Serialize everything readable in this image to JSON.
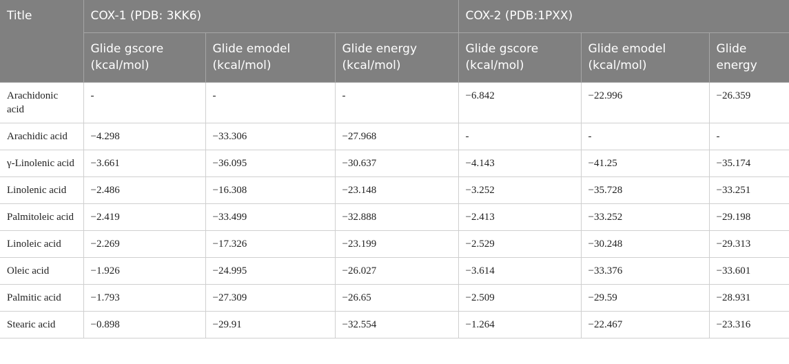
{
  "table": {
    "header": {
      "title": "Title",
      "groups": [
        "COX-1 (PDB: 3KK6)",
        "COX-2 (PDB:1PXX)"
      ],
      "columns": [
        "Glide gscore (kcal/mol)",
        "Glide emodel (kcal/mol)",
        "Glide energy (kcal/mol)",
        "Glide gscore (kcal/mol)",
        "Glide emodel (kcal/mol)",
        "Glide energy"
      ]
    },
    "rows": [
      [
        "Arachidonic acid",
        "-",
        "-",
        "-",
        "−6.842",
        "−22.996",
        "−26.359"
      ],
      [
        "Arachidic acid",
        "−4.298",
        "−33.306",
        "−27.968",
        "-",
        "-",
        "-"
      ],
      [
        "γ-Linolenic acid",
        "−3.661",
        "−36.095",
        "−30.637",
        "−4.143",
        "−41.25",
        "−35.174"
      ],
      [
        "Linolenic acid",
        "−2.486",
        "−16.308",
        "−23.148",
        "−3.252",
        "−35.728",
        "−33.251"
      ],
      [
        "Palmitoleic acid",
        "−2.419",
        "−33.499",
        "−32.888",
        "−2.413",
        "−33.252",
        "−29.198"
      ],
      [
        "Linoleic acid",
        "−2.269",
        "−17.326",
        "−23.199",
        "−2.529",
        "−30.248",
        "−29.313"
      ],
      [
        "Oleic acid",
        "−1.926",
        "−24.995",
        "−26.027",
        "−3.614",
        "−33.376",
        "−33.601"
      ],
      [
        "Palmitic acid",
        "−1.793",
        "−27.309",
        "−26.65",
        "−2.509",
        "−29.59",
        "−28.931"
      ],
      [
        "Stearic acid",
        "−0.898",
        "−29.91",
        "−32.554",
        "−1.264",
        "−22.467",
        "−23.316"
      ]
    ]
  }
}
